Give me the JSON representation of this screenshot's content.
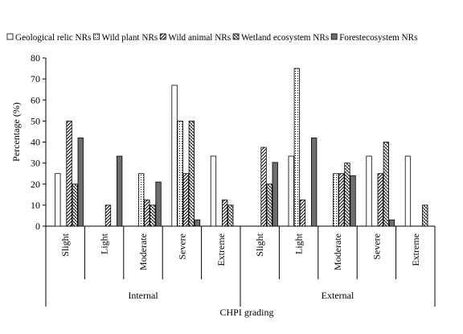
{
  "chart_data": {
    "type": "bar",
    "ylabel": "Percentage  (%)",
    "xlabel": "CHPI grading",
    "ylim": [
      0,
      80
    ],
    "yticks": [
      0,
      10,
      20,
      30,
      40,
      50,
      60,
      70,
      80
    ],
    "grid": false,
    "legend_position": "top",
    "groups": [
      {
        "name": "Internal",
        "categories": [
          "Slight",
          "Light",
          "Moderate",
          "Severe",
          "Extreme"
        ]
      },
      {
        "name": "External",
        "categories": [
          "Slight",
          "Light",
          "Moderate",
          "Severe",
          "Extreme"
        ]
      }
    ],
    "series": [
      {
        "name": "Geological relic NRs",
        "pattern": "white",
        "values": [
          25,
          0,
          0,
          67,
          33.3,
          0,
          33.3,
          0,
          33.3,
          33.3
        ]
      },
      {
        "name": "Wild plant NRs",
        "pattern": "dots",
        "values": [
          0,
          0,
          25,
          50,
          0,
          0,
          75,
          25,
          0,
          0
        ]
      },
      {
        "name": "Wild animal NRs",
        "pattern": "diagonal",
        "values": [
          50,
          10,
          12.5,
          25,
          12.5,
          37.5,
          12.5,
          25,
          25,
          0
        ]
      },
      {
        "name": "Wetland ecosystem NRs",
        "pattern": "crosshatch",
        "values": [
          20,
          0,
          10,
          50,
          10,
          20,
          0,
          30,
          40,
          10
        ]
      },
      {
        "name": "Forestecosystem NRs",
        "pattern": "gray",
        "values": [
          42,
          33.3,
          21,
          3,
          0,
          30.3,
          42,
          24,
          3,
          0
        ]
      }
    ]
  }
}
